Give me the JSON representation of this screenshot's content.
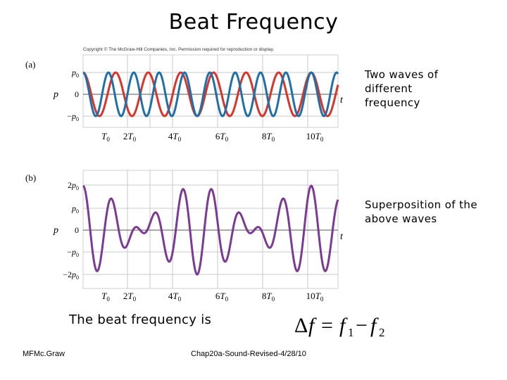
{
  "slide": {
    "title": "Beat Frequency",
    "copyright": "Copyright © The McGraw-Hill Companies, Inc. Permission required for reproduction or display.",
    "note_a": "Two waves of\ndifferent\nfrequency",
    "note_b": "Superposition of the\nabove waves",
    "beat_text": "The beat frequency is",
    "equation": {
      "delta": "Δ",
      "f": "f",
      "equals": "=",
      "f1": "f",
      "sub1": "1",
      "minus": "−",
      "f2": "f",
      "sub2": "2"
    },
    "footer_left": "MFMc.Graw",
    "footer_center": "Chap20a-Sound-Revised-4/28/10"
  },
  "panel_a": {
    "label": "(a)",
    "y_axis_label": "p",
    "t_label": "t",
    "y_ticks": [
      {
        "main": "p",
        "sub": "0",
        "prefix": ""
      },
      {
        "main": "0",
        "sub": "",
        "prefix": ""
      },
      {
        "main": "p",
        "sub": "0",
        "prefix": "−"
      }
    ],
    "x_ticks": [
      {
        "coef": "",
        "sub": "0",
        "main": "T"
      },
      {
        "coef": "2",
        "sub": "0",
        "main": "T"
      },
      {
        "coef": "4",
        "sub": "0",
        "main": "T"
      },
      {
        "coef": "6",
        "sub": "0",
        "main": "T"
      },
      {
        "coef": "8",
        "sub": "0",
        "main": "T"
      },
      {
        "coef": "10",
        "sub": "0",
        "main": "T"
      }
    ],
    "waves": [
      {
        "color": "#1f6fa8",
        "amplitude": 1,
        "periods_per_T0": 0.9,
        "phase": 0
      },
      {
        "color": "#d9342b",
        "amplitude": 1,
        "periods_per_T0": 0.7,
        "phase": 0
      }
    ]
  },
  "panel_b": {
    "label": "(b)",
    "y_axis_label": "p",
    "t_label": "t",
    "y_ticks": [
      {
        "main": "p",
        "sub": "0",
        "prefix": "2"
      },
      {
        "main": "p",
        "sub": "0",
        "prefix": ""
      },
      {
        "main": "0",
        "sub": "",
        "prefix": ""
      },
      {
        "main": "p",
        "sub": "0",
        "prefix": "−"
      },
      {
        "main": "p",
        "sub": "0",
        "prefix": "−2"
      }
    ],
    "x_ticks": [
      {
        "coef": "",
        "sub": "0",
        "main": "T"
      },
      {
        "coef": "2",
        "sub": "0",
        "main": "T"
      },
      {
        "coef": "4",
        "sub": "0",
        "main": "T"
      },
      {
        "coef": "6",
        "sub": "0",
        "main": "T"
      },
      {
        "coef": "8",
        "sub": "0",
        "main": "T"
      },
      {
        "coef": "10",
        "sub": "0",
        "main": "T"
      }
    ],
    "wave": {
      "color": "#7b3a93",
      "amplitude": 2
    }
  },
  "colors": {
    "grid": "#c9c9c9",
    "axis": "#555555"
  }
}
